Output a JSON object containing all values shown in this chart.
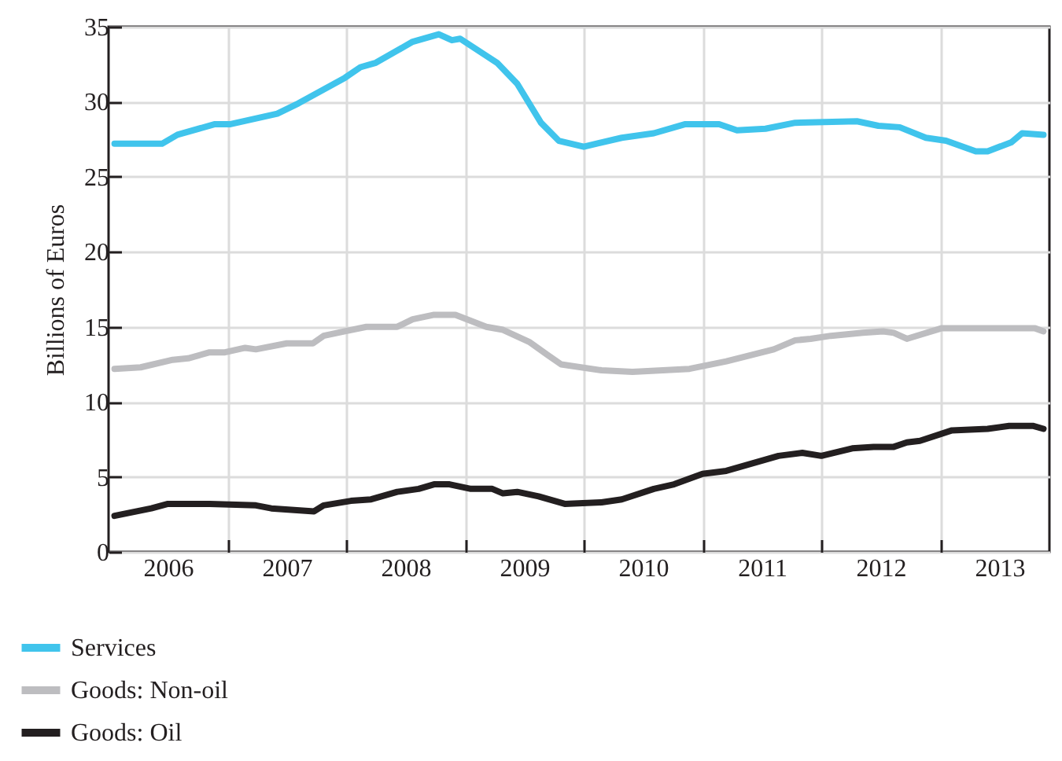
{
  "chart_data": {
    "type": "line",
    "ylabel": "Billions of Euros",
    "xlim": [
      2006,
      2013.92
    ],
    "ylim": [
      0,
      35
    ],
    "xticks": [
      {
        "value": 2006.5,
        "label": "2006"
      },
      {
        "value": 2007,
        "label": null
      },
      {
        "value": 2007.5,
        "label": "2007"
      },
      {
        "value": 2008,
        "label": null
      },
      {
        "value": 2008.5,
        "label": "2008"
      },
      {
        "value": 2009,
        "label": null
      },
      {
        "value": 2009.5,
        "label": "2009"
      },
      {
        "value": 2010,
        "label": null
      },
      {
        "value": 2010.5,
        "label": "2010"
      },
      {
        "value": 2011,
        "label": null
      },
      {
        "value": 2011.5,
        "label": "2011"
      },
      {
        "value": 2012,
        "label": null
      },
      {
        "value": 2012.5,
        "label": "2012"
      },
      {
        "value": 2013,
        "label": null
      },
      {
        "value": 2013.5,
        "label": "2013"
      }
    ],
    "yticks": [
      0,
      5,
      10,
      15,
      20,
      25,
      30,
      35
    ],
    "grid": true,
    "legend": "bottom left",
    "marker": "none",
    "line_style": "solid",
    "series": [
      {
        "name": "Services",
        "color": "#40c4ec",
        "x": [
          2006.05,
          2006.45,
          2006.58,
          2006.89,
          2007.02,
          2007.42,
          2007.6,
          2007.99,
          2008.12,
          2008.25,
          2008.56,
          2008.78,
          2008.89,
          2008.96,
          2009.27,
          2009.44,
          2009.64,
          2009.79,
          2010.0,
          2010.32,
          2010.59,
          2010.85,
          2011.14,
          2011.29,
          2011.53,
          2011.78,
          2012.3,
          2012.48,
          2012.66,
          2012.88,
          2013.05,
          2013.3,
          2013.4,
          2013.6,
          2013.69,
          2013.87
        ],
        "values": [
          27.2,
          27.2,
          27.8,
          28.5,
          28.5,
          29.2,
          29.9,
          31.6,
          32.3,
          32.6,
          34.0,
          34.5,
          34.1,
          34.2,
          32.6,
          31.2,
          28.6,
          27.4,
          27.0,
          27.6,
          27.9,
          28.5,
          28.5,
          28.1,
          28.2,
          28.6,
          28.7,
          28.4,
          28.3,
          27.6,
          27.4,
          26.7,
          26.7,
          27.3,
          27.9,
          27.8
        ]
      },
      {
        "name": "Goods: Non-oil",
        "color": "#bdbdc0",
        "x": [
          2006.05,
          2006.27,
          2006.54,
          2006.67,
          2006.85,
          2006.98,
          2007.15,
          2007.24,
          2007.5,
          2007.72,
          2007.81,
          2007.99,
          2008.17,
          2008.43,
          2008.56,
          2008.74,
          2008.92,
          2009.18,
          2009.32,
          2009.54,
          2009.7,
          2009.81,
          2010.15,
          2010.41,
          2010.89,
          2011.2,
          2011.6,
          2011.78,
          2011.91,
          2012.08,
          2012.35,
          2012.52,
          2012.61,
          2012.72,
          2013.01,
          2013.19,
          2013.8,
          2013.87
        ],
        "values": [
          12.2,
          12.3,
          12.8,
          12.9,
          13.3,
          13.3,
          13.6,
          13.5,
          13.9,
          13.9,
          14.4,
          14.7,
          15.0,
          15.0,
          15.5,
          15.8,
          15.8,
          15.0,
          14.8,
          14.0,
          13.1,
          12.5,
          12.1,
          12.0,
          12.2,
          12.7,
          13.5,
          14.1,
          14.2,
          14.4,
          14.6,
          14.7,
          14.6,
          14.2,
          14.9,
          14.9,
          14.9,
          14.7
        ]
      },
      {
        "name": "Goods: Oil",
        "color": "#231f20",
        "x": [
          2006.05,
          2006.36,
          2006.5,
          2006.85,
          2007.24,
          2007.37,
          2007.73,
          2007.81,
          2008.04,
          2008.21,
          2008.43,
          2008.61,
          2008.74,
          2008.87,
          2009.05,
          2009.23,
          2009.32,
          2009.44,
          2009.62,
          2009.84,
          2010.15,
          2010.32,
          2010.59,
          2010.76,
          2011.0,
          2011.2,
          2011.42,
          2011.64,
          2011.84,
          2012.0,
          2012.26,
          2012.44,
          2012.61,
          2012.72,
          2012.83,
          2013.1,
          2013.4,
          2013.58,
          2013.78,
          2013.87
        ],
        "values": [
          2.4,
          2.9,
          3.2,
          3.2,
          3.1,
          2.9,
          2.7,
          3.1,
          3.4,
          3.5,
          4.0,
          4.2,
          4.5,
          4.5,
          4.2,
          4.2,
          3.9,
          4.0,
          3.7,
          3.2,
          3.3,
          3.5,
          4.2,
          4.5,
          5.2,
          5.4,
          5.9,
          6.4,
          6.6,
          6.4,
          6.9,
          7.0,
          7.0,
          7.3,
          7.4,
          8.1,
          8.2,
          8.4,
          8.4,
          8.2
        ]
      }
    ]
  }
}
